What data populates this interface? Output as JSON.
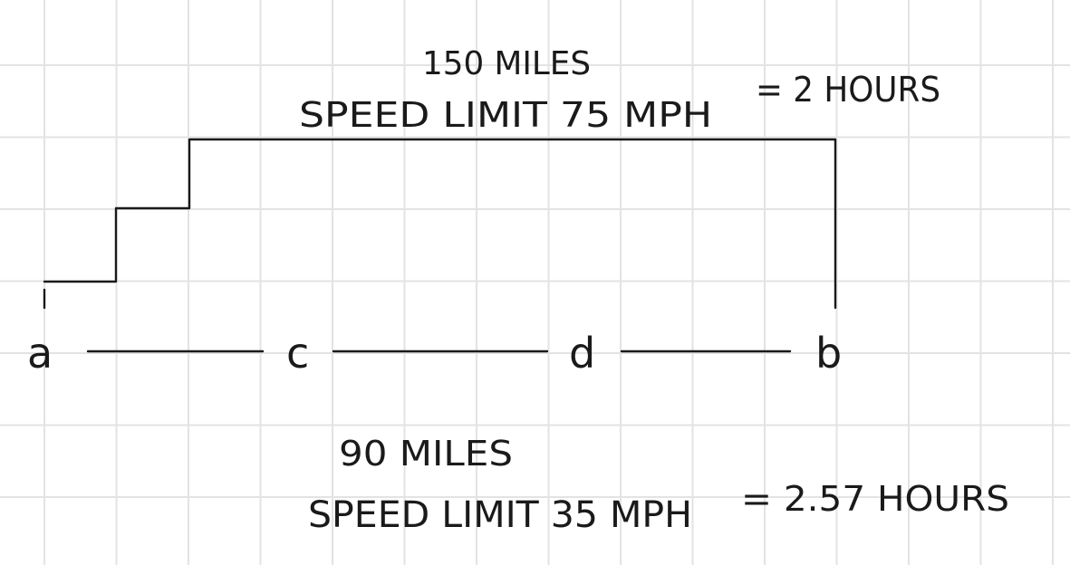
{
  "upper_route": {
    "distance": "150 MILES",
    "speed_limit": "SPEED LIMIT  75 MPH",
    "result": "= 2 HOURS"
  },
  "lower_route": {
    "distance": "90 MILES",
    "speed_limit": "SPEED LIMIT 35 MPH",
    "result": "= 2.57 HOURS"
  },
  "nodes": {
    "a": "a",
    "c": "c",
    "d": "d",
    "b": "b"
  },
  "colors": {
    "ink": "#1a1a1a",
    "grid": "#e3e3e3"
  }
}
